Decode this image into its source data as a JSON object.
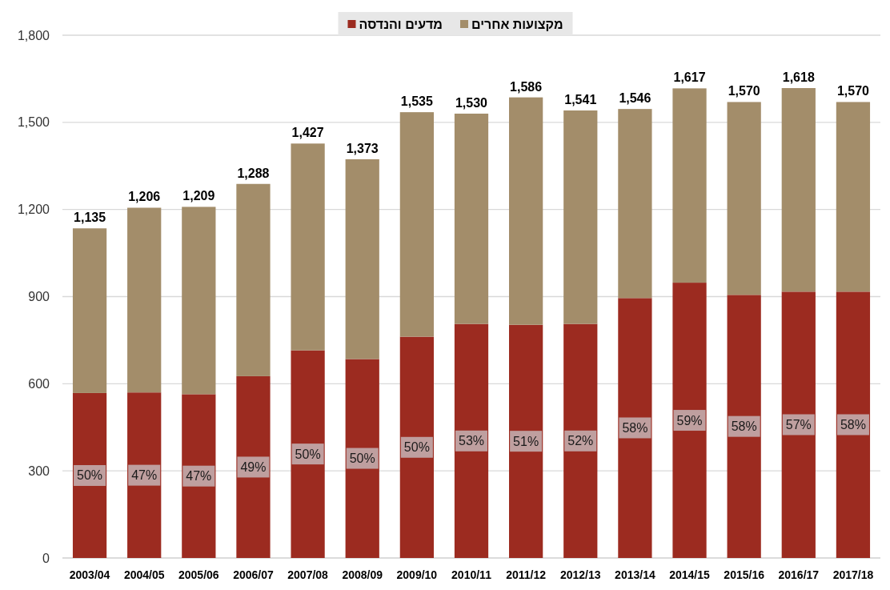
{
  "chart_data": {
    "type": "bar",
    "stacked": true,
    "categories": [
      "2003/04",
      "2004/05",
      "2005/06",
      "2006/07",
      "2007/08",
      "2008/09",
      "2009/10",
      "2010/11",
      "2011/12",
      "2012/13",
      "2013/14",
      "2014/15",
      "2015/16",
      "2016/17",
      "2017/18"
    ],
    "series": [
      {
        "name": "מדעים והנדסה",
        "color": "#9c2b20",
        "values": [
          568,
          570,
          564,
          626,
          715,
          685,
          762,
          806,
          803,
          806,
          895,
          948,
          906,
          917,
          917
        ]
      },
      {
        "name": "מקצועות אחרים",
        "color": "#a38d6a",
        "values": [
          567,
          636,
          645,
          662,
          712,
          688,
          773,
          724,
          783,
          735,
          651,
          669,
          664,
          701,
          653
        ]
      }
    ],
    "totals": [
      "1,135",
      "1,206",
      "1,209",
      "1,288",
      "1,427",
      "1,373",
      "1,535",
      "1,530",
      "1,586",
      "1,541",
      "1,546",
      "1,617",
      "1,570",
      "1,618",
      "1,570"
    ],
    "annotations": [
      {
        "text": "50%",
        "x": "2003/04",
        "y": 284
      },
      {
        "text": "47%",
        "x": "2004/05",
        "y": 285
      },
      {
        "text": "47%",
        "x": "2005/06",
        "y": 282
      },
      {
        "text": "49%",
        "x": "2006/07",
        "y": 313
      },
      {
        "text": "50%",
        "x": "2007/08",
        "y": 358
      },
      {
        "text": "50%",
        "x": "2008/09",
        "y": 343
      },
      {
        "text": "50%",
        "x": "2009/10",
        "y": 381
      },
      {
        "text": "53%",
        "x": "2010/11",
        "y": 403
      },
      {
        "text": "51%",
        "x": "2011/12",
        "y": 402
      },
      {
        "text": "52%",
        "x": "2012/13",
        "y": 403
      },
      {
        "text": "58%",
        "x": "2013/14",
        "y": 448
      },
      {
        "text": "59%",
        "x": "2014/15",
        "y": 474
      },
      {
        "text": "58%",
        "x": "2015/16",
        "y": 453
      },
      {
        "text": "57%",
        "x": "2016/17",
        "y": 459
      },
      {
        "text": "58%",
        "x": "2017/18",
        "y": 459
      }
    ],
    "ylim": [
      0,
      1800
    ],
    "yticks": [
      0,
      300,
      600,
      900,
      {
        "value": 1200,
        "label": "1,200"
      },
      {
        "value": 1500,
        "label": "1,500"
      },
      {
        "value": 1800,
        "label": "1,800"
      }
    ],
    "grid": "y",
    "legend": "top"
  }
}
